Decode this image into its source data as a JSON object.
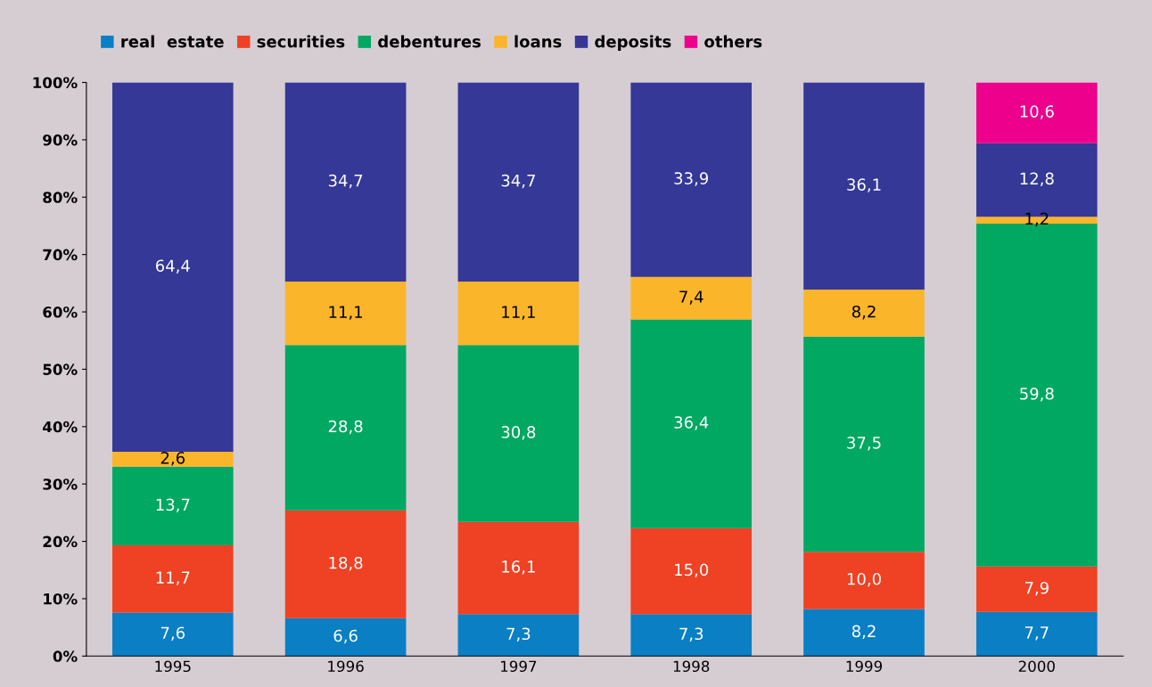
{
  "chart_data": {
    "type": "bar",
    "stacked": true,
    "categories": [
      "1995",
      "1996",
      "1997",
      "1998",
      "1999",
      "2000"
    ],
    "series": [
      {
        "name": "real  estate",
        "color": "#0a7fc4",
        "values": [
          7.6,
          6.6,
          7.3,
          7.3,
          8.2,
          7.7
        ],
        "value_labels": [
          "7,6",
          "6,6",
          "7,3",
          "7,3",
          "8,2",
          "7,7"
        ]
      },
      {
        "name": "securities",
        "color": "#ef4123",
        "values": [
          11.7,
          18.8,
          16.1,
          15.0,
          10.0,
          7.9
        ],
        "value_labels": [
          "11,7",
          "18,8",
          "16,1",
          "15,0",
          "10,0",
          "7,9"
        ]
      },
      {
        "name": "debentures",
        "color": "#00a862",
        "values": [
          13.7,
          28.8,
          30.8,
          36.4,
          37.5,
          59.8
        ],
        "value_labels": [
          "13,7",
          "28,8",
          "30,8",
          "36,4",
          "37,5",
          "59,8"
        ]
      },
      {
        "name": "loans",
        "color": "#fbb52a",
        "values": [
          2.6,
          11.1,
          11.1,
          7.4,
          8.2,
          1.2
        ],
        "value_labels": [
          "2,6",
          "11,1",
          "11,1",
          "7,4",
          "8,2",
          "1,2"
        ]
      },
      {
        "name": "deposits",
        "color": "#353896",
        "values": [
          64.4,
          34.7,
          34.7,
          33.9,
          36.1,
          12.8
        ],
        "value_labels": [
          "64,4",
          "34,7",
          "34,7",
          "33,9",
          "36,1",
          "12,8"
        ]
      },
      {
        "name": "others",
        "color": "#ec008c",
        "values": [
          null,
          null,
          null,
          null,
          null,
          10.6
        ],
        "value_labels": [
          null,
          null,
          null,
          null,
          null,
          "10,6"
        ]
      }
    ],
    "ylim": [
      0,
      100
    ],
    "yticks": [
      {
        "value": 0,
        "label": "0%"
      },
      {
        "value": 10,
        "label": "10%"
      },
      {
        "value": 20,
        "label": "20%"
      },
      {
        "value": 30,
        "label": "30%"
      },
      {
        "value": 40,
        "label": "40%"
      },
      {
        "value": 50,
        "label": "50%"
      },
      {
        "value": 60,
        "label": "60%"
      },
      {
        "value": 70,
        "label": "70%"
      },
      {
        "value": 80,
        "label": "80%"
      },
      {
        "value": 90,
        "label": "90%"
      },
      {
        "value": 100,
        "label": "100%"
      }
    ],
    "grid": false,
    "legend": "top left"
  }
}
